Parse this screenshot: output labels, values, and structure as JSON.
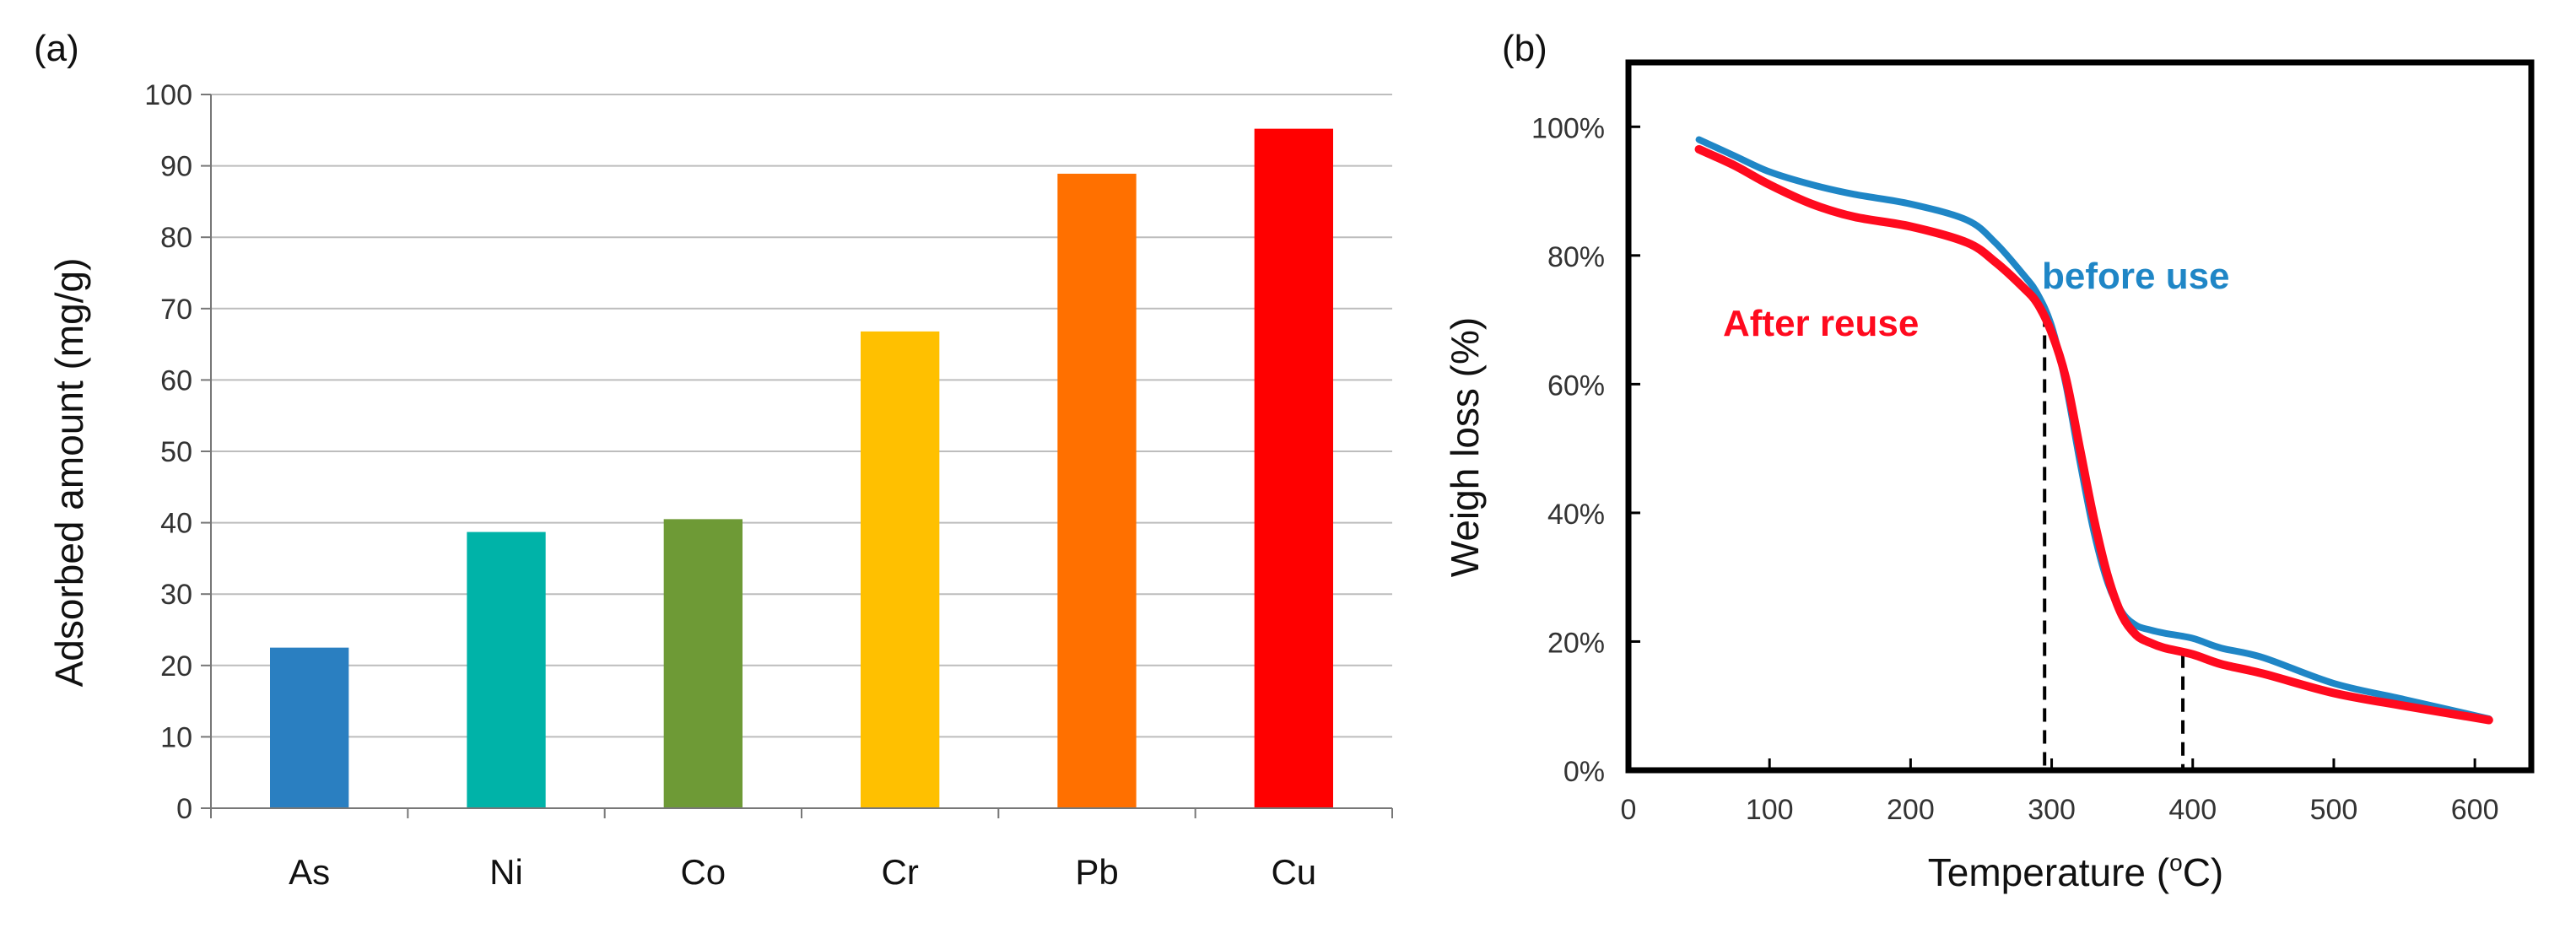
{
  "chart_data": [
    {
      "panel_label": "(a)",
      "type": "bar",
      "title": "",
      "xlabel": "",
      "ylabel": "Adsorbed amount (mg/g)",
      "ylim": [
        0,
        100
      ],
      "yticks": [
        "0",
        "10",
        "20",
        "30",
        "40",
        "50",
        "60",
        "70",
        "80",
        "90",
        "100"
      ],
      "grid": true,
      "categories": [
        "As",
        "Ni",
        "Co",
        "Cr",
        "Pb",
        "Cu"
      ],
      "values": [
        22.5,
        38.7,
        40.5,
        66.8,
        88.9,
        95.2
      ],
      "colors": [
        "#2a7fc1",
        "#00b3a8",
        "#6e9a36",
        "#ffc000",
        "#ff7000",
        "#ff0000"
      ]
    },
    {
      "panel_label": "(b)",
      "type": "line",
      "title": "",
      "xlabel": "Temperature (",
      "xlabel_sup": "o",
      "xlabel_end": "C)",
      "ylabel": "Weigh loss (%)",
      "xlim": [
        0,
        640
      ],
      "ylim": [
        0,
        110
      ],
      "xticks": [
        "0",
        "100",
        "200",
        "300",
        "400",
        "500",
        "600"
      ],
      "yticks": [
        "0%",
        "20%",
        "40%",
        "60%",
        "80%",
        "100%"
      ],
      "series": [
        {
          "name": "before use",
          "color": "#1f86c6",
          "x": [
            50,
            75,
            100,
            130,
            160,
            200,
            240,
            260,
            280,
            290,
            300,
            310,
            320,
            330,
            340,
            350,
            360,
            370,
            380,
            400,
            420,
            450,
            500,
            550,
            610
          ],
          "y": [
            98,
            95.5,
            93,
            91,
            89.5,
            88,
            85.5,
            82,
            77,
            74,
            69,
            60,
            48,
            37,
            29,
            24.5,
            22.5,
            21.8,
            21.3,
            20.5,
            19,
            17.5,
            13.5,
            11,
            8
          ]
        },
        {
          "name": "After reuse",
          "color": "#ff0a1e",
          "x": [
            50,
            75,
            100,
            130,
            160,
            200,
            240,
            260,
            280,
            290,
            300,
            310,
            320,
            330,
            340,
            350,
            360,
            370,
            380,
            400,
            420,
            450,
            500,
            550,
            610
          ],
          "y": [
            96.5,
            94,
            91,
            88,
            86,
            84.5,
            82,
            79,
            75,
            72.5,
            68,
            61,
            50,
            39,
            30,
            24,
            21,
            19.8,
            19,
            18,
            16.5,
            15,
            12,
            10,
            7.8
          ]
        }
      ],
      "reference_lines": [
        {
          "x": 295,
          "y_top": 71
        },
        {
          "x": 393,
          "y_top": 18
        }
      ]
    }
  ]
}
